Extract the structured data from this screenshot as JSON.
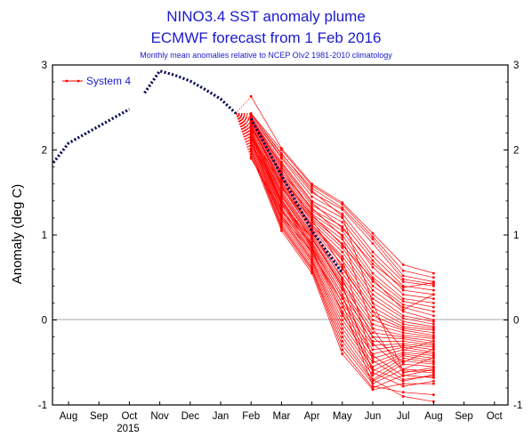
{
  "chart_data": {
    "type": "line",
    "title": "NINO3.4 SST anomaly plume",
    "subtitle": "ECMWF forecast from 1 Feb 2016",
    "note": "Monthly mean anomalies relative to NCEP OIv2 1981-2010 climatology",
    "ylabel": "Anomaly (deg C)",
    "xlabel": "",
    "ylim": [
      -1,
      3
    ],
    "yticks": [
      "-1",
      "0",
      "1",
      "2",
      "3"
    ],
    "xticks": [
      "Aug",
      "Sep",
      "Oct",
      "Nov",
      "Dec",
      "Jan",
      "Feb",
      "Mar",
      "Apr",
      "May",
      "Jun",
      "Jul",
      "Aug",
      "Sep",
      "Oct"
    ],
    "year_label": "2015",
    "zero_line": true,
    "legend": {
      "position": "top-left",
      "entries": [
        "System 4"
      ]
    },
    "colors": {
      "ensemble": "#ff0000",
      "observed": "#10105a",
      "title": "#1a1ad0"
    },
    "observed": {
      "x": [
        -0.5,
        0.0,
        0.5,
        1.0,
        1.5,
        2.0,
        2.5,
        3.0,
        3.5,
        4.0,
        4.5,
        5.0,
        5.5
      ],
      "y": [
        1.85,
        2.08,
        2.18,
        2.28,
        2.38,
        2.48,
        2.67,
        2.93,
        2.88,
        2.81,
        2.71,
        2.6,
        2.43
      ]
    },
    "ensemble_mean": {
      "x": [
        6,
        7,
        8,
        9
      ],
      "y": [
        2.37,
        1.7,
        1.05,
        0.55
      ]
    },
    "ensemble": {
      "x": [
        6,
        7,
        8,
        9,
        10,
        11,
        12
      ],
      "members": [
        [
          2.63,
          2.02,
          1.6,
          1.38,
          1.02,
          0.65,
          0.55
        ],
        [
          2.43,
          2.0,
          1.58,
          1.36,
          0.98,
          0.58,
          0.5
        ],
        [
          2.42,
          1.95,
          1.55,
          1.32,
          0.95,
          0.52,
          0.45
        ],
        [
          2.4,
          1.92,
          1.5,
          1.3,
          0.9,
          0.48,
          0.42
        ],
        [
          2.4,
          1.9,
          1.45,
          1.25,
          0.8,
          0.45,
          0.4
        ],
        [
          2.38,
          1.86,
          1.4,
          1.2,
          0.75,
          0.4,
          0.35
        ],
        [
          2.38,
          1.82,
          1.35,
          1.15,
          0.7,
          0.35,
          0.3
        ],
        [
          2.37,
          1.8,
          1.3,
          1.1,
          0.62,
          0.3,
          0.25
        ],
        [
          2.35,
          1.78,
          1.28,
          1.05,
          0.55,
          0.25,
          0.2
        ],
        [
          2.35,
          1.75,
          1.25,
          1.0,
          0.5,
          0.22,
          0.15
        ],
        [
          2.33,
          1.72,
          1.22,
          0.95,
          0.45,
          0.18,
          0.1
        ],
        [
          2.33,
          1.7,
          1.2,
          0.9,
          0.4,
          0.15,
          0.05
        ],
        [
          2.32,
          1.68,
          1.18,
          0.85,
          0.35,
          0.1,
          0.0
        ],
        [
          2.3,
          1.65,
          1.15,
          0.8,
          0.3,
          0.05,
          -0.02
        ],
        [
          2.3,
          1.62,
          1.12,
          0.75,
          0.25,
          0.02,
          -0.05
        ],
        [
          2.28,
          1.6,
          1.1,
          0.7,
          0.2,
          -0.02,
          -0.08
        ],
        [
          2.28,
          1.58,
          1.08,
          0.65,
          0.15,
          -0.05,
          -0.1
        ],
        [
          2.25,
          1.55,
          1.05,
          0.6,
          0.1,
          -0.08,
          -0.12
        ],
        [
          2.25,
          1.52,
          1.02,
          0.55,
          0.05,
          -0.1,
          -0.15
        ],
        [
          2.22,
          1.5,
          1.0,
          0.5,
          0.0,
          -0.12,
          -0.18
        ],
        [
          2.22,
          1.48,
          0.98,
          0.45,
          -0.05,
          -0.15,
          -0.2
        ],
        [
          2.2,
          1.45,
          0.95,
          0.4,
          -0.1,
          -0.18,
          -0.22
        ],
        [
          2.2,
          1.42,
          0.92,
          0.35,
          -0.15,
          -0.2,
          -0.25
        ],
        [
          2.18,
          1.4,
          0.9,
          0.3,
          -0.2,
          -0.22,
          -0.28
        ],
        [
          2.18,
          1.38,
          0.88,
          0.25,
          -0.25,
          -0.25,
          -0.3
        ],
        [
          2.15,
          1.35,
          0.85,
          0.2,
          -0.3,
          -0.28,
          -0.32
        ],
        [
          2.15,
          1.32,
          0.82,
          0.15,
          -0.35,
          -0.3,
          -0.35
        ],
        [
          2.12,
          1.3,
          0.8,
          0.1,
          -0.4,
          -0.32,
          -0.38
        ],
        [
          2.12,
          1.28,
          0.78,
          0.05,
          -0.45,
          -0.35,
          -0.4
        ],
        [
          2.1,
          1.25,
          0.75,
          0.0,
          -0.5,
          -0.38,
          -0.42
        ],
        [
          2.1,
          1.22,
          0.72,
          -0.05,
          -0.55,
          -0.4,
          -0.45
        ],
        [
          2.08,
          1.2,
          0.7,
          -0.1,
          -0.6,
          -0.42,
          -0.48
        ],
        [
          2.05,
          1.18,
          0.68,
          -0.15,
          -0.65,
          -0.45,
          -0.5
        ],
        [
          2.05,
          1.15,
          0.65,
          -0.2,
          -0.7,
          -0.48,
          -0.52
        ],
        [
          2.02,
          1.12,
          0.62,
          -0.25,
          -0.72,
          -0.52,
          -0.55
        ],
        [
          2.0,
          1.1,
          0.6,
          -0.3,
          -0.75,
          -0.58,
          -0.6
        ],
        [
          1.98,
          1.08,
          0.58,
          -0.35,
          -0.8,
          -0.65,
          -0.68
        ],
        [
          1.95,
          1.05,
          0.55,
          -0.4,
          -0.82,
          -0.75,
          -0.75
        ],
        [
          1.92,
          1.22,
          0.8,
          0.2,
          -0.78,
          -0.85,
          -0.88
        ],
        [
          1.9,
          1.28,
          0.9,
          0.3,
          -0.7,
          -0.9,
          -0.96
        ],
        [
          2.42,
          1.96,
          1.52,
          1.22,
          0.2,
          -0.6,
          -0.62
        ],
        [
          2.36,
          1.74,
          1.32,
          0.98,
          -0.1,
          -0.62,
          -0.56
        ],
        [
          2.24,
          1.56,
          1.12,
          0.72,
          -0.48,
          -0.7,
          -0.66
        ],
        [
          2.18,
          1.36,
          0.96,
          0.42,
          -0.62,
          -0.78,
          -0.72
        ],
        [
          2.14,
          1.62,
          1.18,
          0.62,
          0.1,
          -0.35,
          -0.25
        ],
        [
          2.26,
          1.66,
          1.24,
          0.88,
          0.48,
          0.12,
          0.3
        ],
        [
          2.34,
          1.84,
          1.38,
          1.08,
          0.66,
          0.38,
          0.44
        ],
        [
          2.3,
          1.58,
          1.04,
          0.48,
          -0.2,
          -0.5,
          -0.34
        ],
        [
          2.2,
          1.46,
          0.96,
          0.38,
          -0.28,
          -0.58,
          -0.44
        ],
        [
          2.16,
          1.42,
          0.86,
          0.26,
          -0.42,
          -0.66,
          -0.58
        ],
        [
          2.1,
          1.38,
          0.84,
          0.08,
          -0.58,
          -0.72,
          -0.64
        ]
      ]
    }
  }
}
